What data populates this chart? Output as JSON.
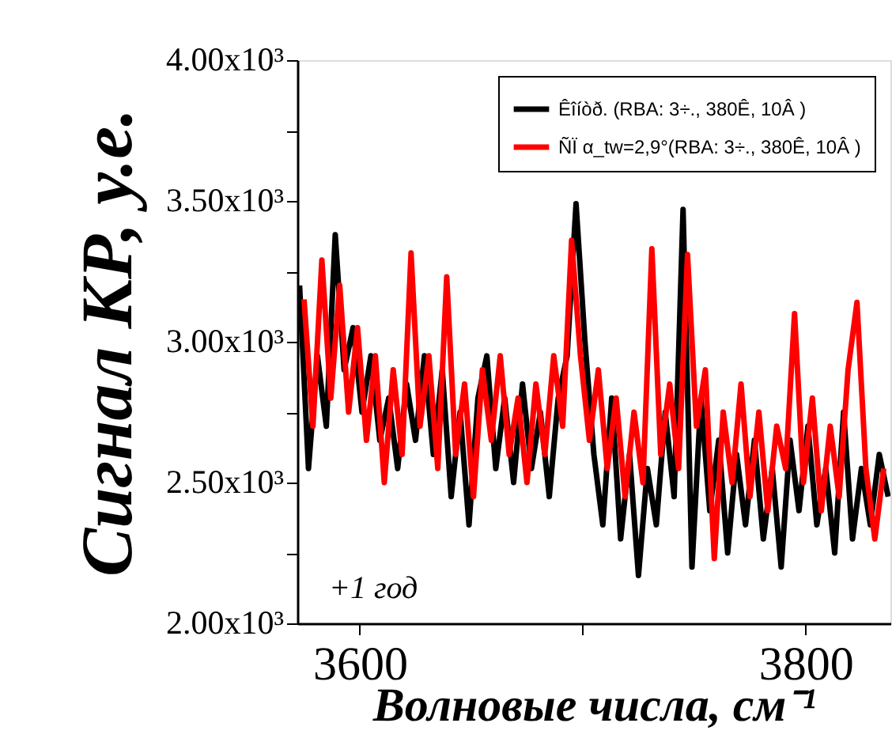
{
  "chart_data": {
    "type": "line",
    "xlabel": "Волновые числа, см⁻¹",
    "ylabel": "Сигнал КР, у.е.",
    "xlim": [
      3572,
      3838
    ],
    "xticks": [
      3600,
      {
        "value": 3700,
        "label": null
      },
      3800
    ],
    "ylim": [
      2000,
      4000
    ],
    "yticks": [
      {
        "value": 2000,
        "label": "2.00x10³"
      },
      {
        "value": 2250,
        "label": null
      },
      {
        "value": 2500,
        "label": "2.50x10³"
      },
      {
        "value": 2750,
        "label": null
      },
      {
        "value": 3000,
        "label": "3.00x10³"
      },
      {
        "value": 3250,
        "label": null
      },
      {
        "value": 3500,
        "label": "3.50x10³"
      },
      {
        "value": 3750,
        "label": null
      },
      {
        "value": 4000,
        "label": "4.00x10³"
      }
    ],
    "grid": false,
    "legend": "top right",
    "line_style": "solid",
    "marker": "none",
    "annotations": [
      "+1 год"
    ],
    "series": [
      {
        "name": "Êîíòð. (RBA: 3÷., 380Ê, 10Â )",
        "color": "#000000",
        "x": [
          3573,
          3577,
          3581,
          3585,
          3589,
          3593,
          3597,
          3601,
          3605,
          3609,
          3613,
          3617,
          3621,
          3625,
          3629,
          3633,
          3637,
          3641,
          3645,
          3649,
          3653,
          3657,
          3661,
          3665,
          3669,
          3673,
          3677,
          3681,
          3685,
          3689,
          3693,
          3697,
          3701,
          3705,
          3709,
          3713,
          3717,
          3721,
          3725,
          3729,
          3733,
          3737,
          3741,
          3745,
          3749,
          3753,
          3757,
          3761,
          3765,
          3769,
          3773,
          3777,
          3781,
          3785,
          3789,
          3793,
          3797,
          3801,
          3805,
          3809,
          3813,
          3817,
          3821,
          3825,
          3829,
          3833,
          3837
        ],
        "values": [
          3200,
          2550,
          2950,
          2700,
          3380,
          2900,
          3050,
          2750,
          2950,
          2650,
          2800,
          2550,
          2850,
          2650,
          2950,
          2600,
          2900,
          2450,
          2750,
          2350,
          2800,
          2950,
          2550,
          2800,
          2500,
          2850,
          2550,
          2750,
          2450,
          2800,
          2950,
          3490,
          3000,
          2600,
          2350,
          2800,
          2300,
          2600,
          2170,
          2550,
          2350,
          2750,
          2450,
          3470,
          2200,
          2800,
          2400,
          2650,
          2250,
          2600,
          2350,
          2650,
          2300,
          2550,
          2200,
          2650,
          2400,
          2700,
          2350,
          2550,
          2250,
          2750,
          2300,
          2550,
          2350,
          2600,
          2450
        ]
      },
      {
        "name": "ÑÏ α_tw=2,9°(RBA: 3÷., 380Ê, 10Â )",
        "color": "#ff0000",
        "x": [
          3575,
          3579,
          3583,
          3587,
          3591,
          3595,
          3599,
          3603,
          3607,
          3611,
          3615,
          3619,
          3623,
          3627,
          3631,
          3635,
          3639,
          3643,
          3647,
          3651,
          3655,
          3659,
          3663,
          3667,
          3671,
          3675,
          3679,
          3683,
          3687,
          3691,
          3695,
          3699,
          3703,
          3707,
          3711,
          3715,
          3719,
          3723,
          3727,
          3731,
          3735,
          3739,
          3743,
          3747,
          3751,
          3755,
          3759,
          3763,
          3767,
          3771,
          3775,
          3779,
          3783,
          3787,
          3791,
          3795,
          3799,
          3803,
          3807,
          3811,
          3815,
          3819,
          3823,
          3827,
          3831,
          3835
        ],
        "values": [
          3150,
          2700,
          3290,
          2800,
          3200,
          2750,
          3050,
          2650,
          2950,
          2500,
          2900,
          2600,
          3315,
          2700,
          2950,
          2550,
          3230,
          2600,
          2850,
          2450,
          2900,
          2650,
          2950,
          2600,
          2800,
          2500,
          2850,
          2600,
          2950,
          2700,
          3360,
          2950,
          2650,
          2900,
          2550,
          2800,
          2450,
          2750,
          2500,
          3330,
          2600,
          2850,
          2550,
          3310,
          2700,
          2900,
          2230,
          2750,
          2500,
          2850,
          2450,
          2750,
          2400,
          2700,
          2550,
          3100,
          2500,
          2800,
          2400,
          2700,
          2450,
          2900,
          3140,
          2550,
          2300,
          2550
        ]
      }
    ]
  }
}
